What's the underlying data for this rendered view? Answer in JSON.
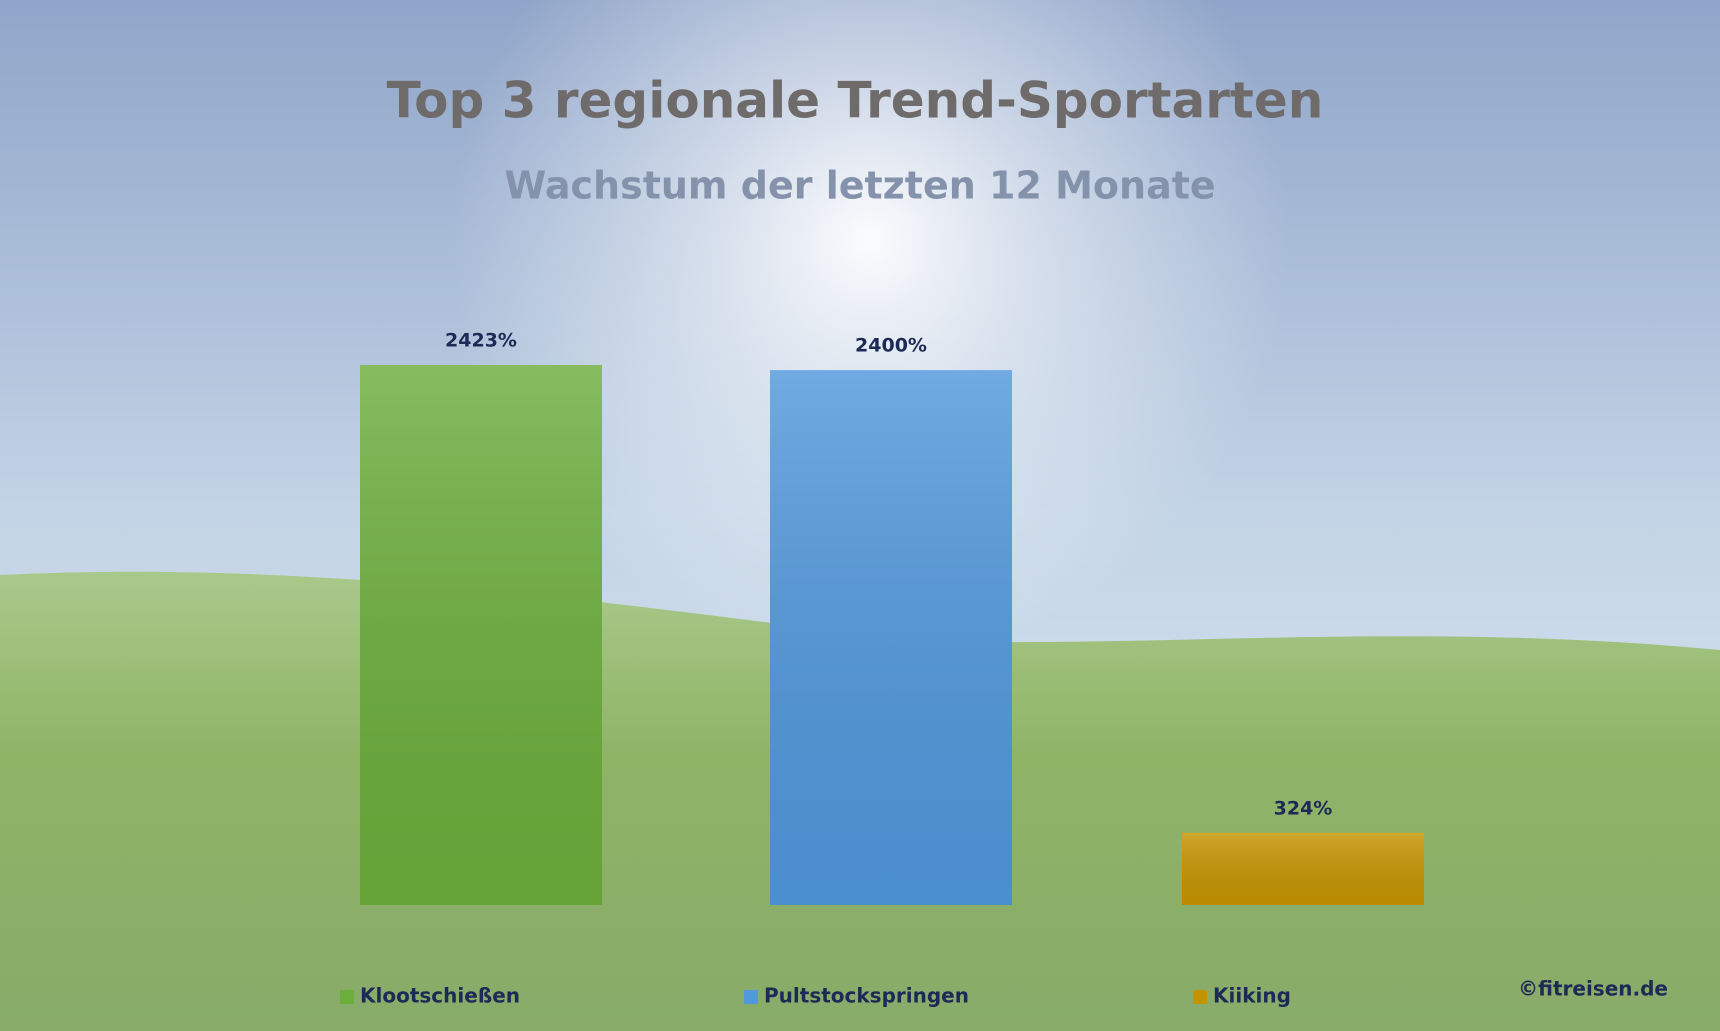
{
  "chart_data": {
    "type": "bar",
    "title": "Top 3 regionale Trend-Sportarten",
    "subtitle": "Wachstum der letzten 12 Monate",
    "series": [
      {
        "name": "Klootschießen",
        "color": "#6cae3c",
        "values": [
          2423
        ],
        "value_labels": [
          "2423%"
        ]
      },
      {
        "name": "Pultstockspringen",
        "color": "#5198dc",
        "values": [
          2400
        ],
        "value_labels": [
          "2400%"
        ]
      },
      {
        "name": "Kiiking",
        "color": "#c49400",
        "values": [
          324
        ],
        "value_labels": [
          "324%"
        ]
      }
    ],
    "credit": "©fitreisen.de"
  }
}
